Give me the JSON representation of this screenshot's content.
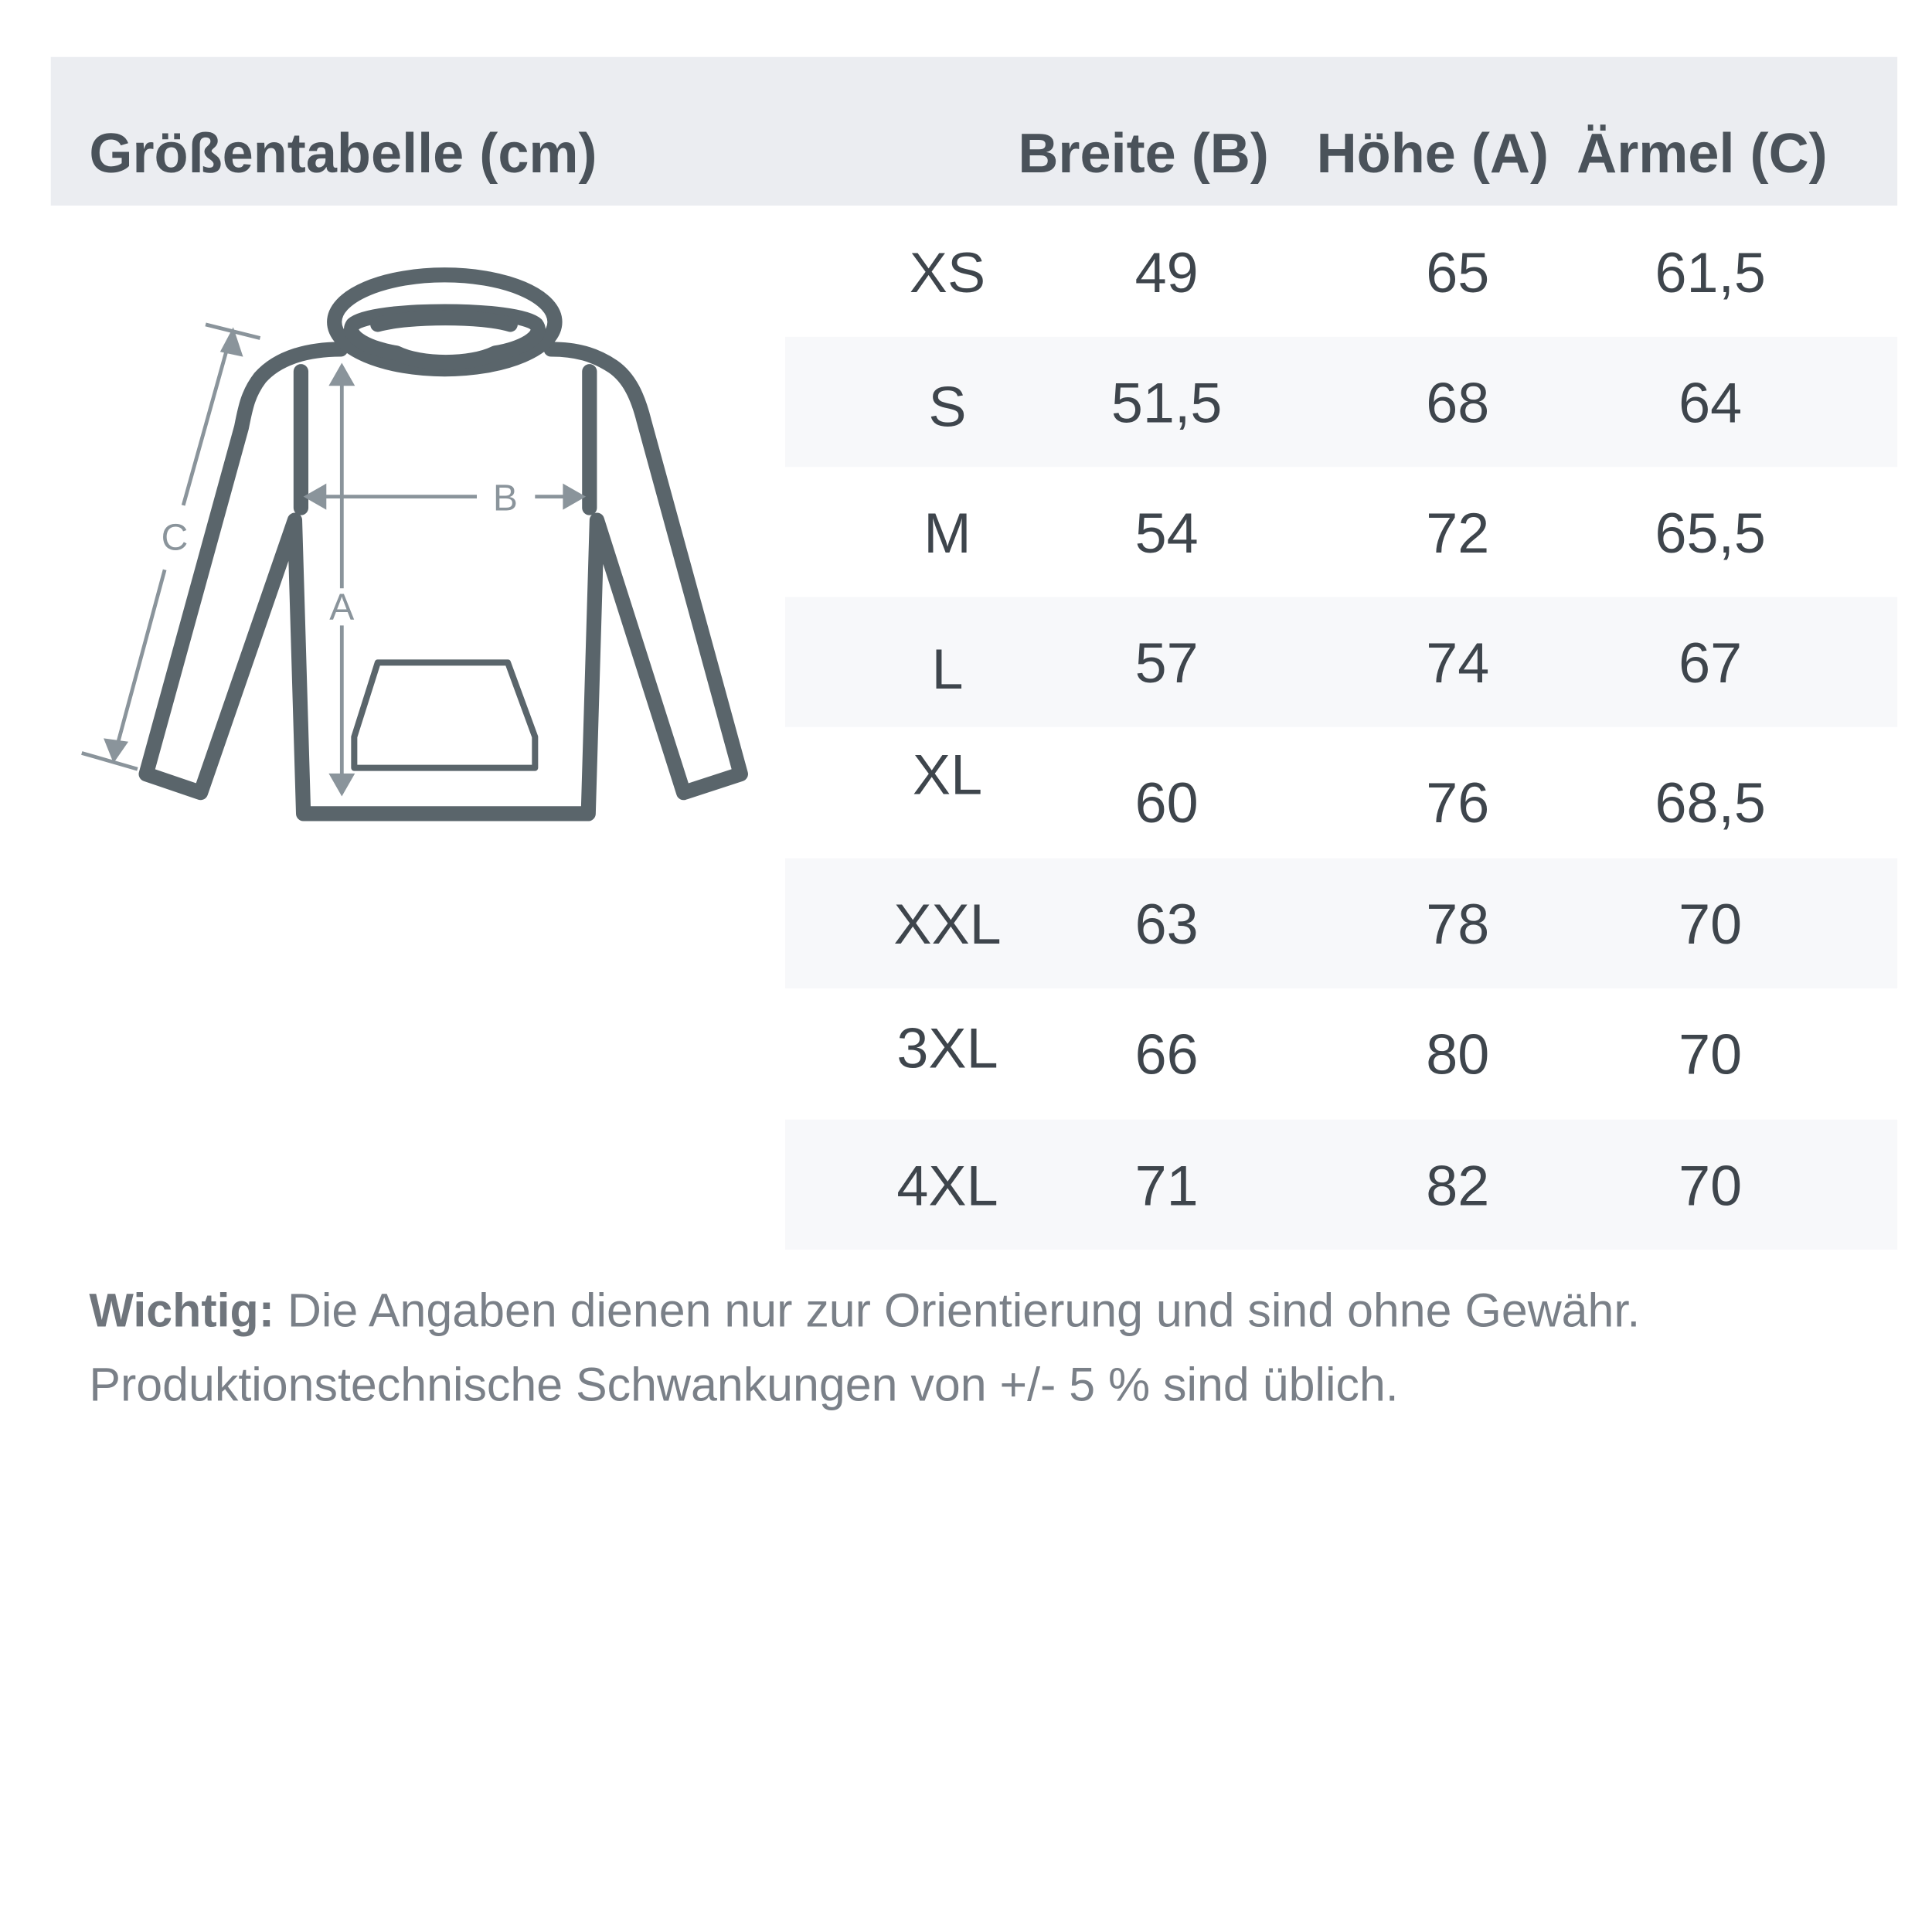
{
  "header": {
    "title": "Größentabelle (cm)",
    "columns": [
      "Breite (B)",
      "Höhe (A)",
      "Ärmel (C)"
    ]
  },
  "diagram": {
    "icon": "hoodie-icon",
    "labels": {
      "width": "B",
      "height": "A",
      "sleeve": "C"
    }
  },
  "rows": [
    {
      "size": "XS",
      "breite": "49",
      "hoehe": "65",
      "aermel": "61,5"
    },
    {
      "size": "S",
      "breite": "51,5",
      "hoehe": "68",
      "aermel": "64"
    },
    {
      "size": "M",
      "breite": "54",
      "hoehe": "72",
      "aermel": "65,5"
    },
    {
      "size": "L",
      "breite": "57",
      "hoehe": "74",
      "aermel": "67"
    },
    {
      "size": "XL",
      "breite": "60",
      "hoehe": "76",
      "aermel": "68,5"
    },
    {
      "size": "XXL",
      "breite": "63",
      "hoehe": "78",
      "aermel": "70"
    },
    {
      "size": "3XL",
      "breite": "66",
      "hoehe": "80",
      "aermel": "70"
    },
    {
      "size": "4XL",
      "breite": "71",
      "hoehe": "82",
      "aermel": "70"
    }
  ],
  "note": {
    "bold": "Wichtig:",
    "line1": " Die Angaben dienen nur zur Orientierung und sind ohne Gewähr.",
    "line2": "Produktionstechnische Schwankungen von +/- 5 % sind üblich."
  },
  "colors": {
    "header_bg": "#ebedf1",
    "stripe": "#f7f8fa",
    "drawing": "#5a656b",
    "arrows": "#8a949b"
  }
}
